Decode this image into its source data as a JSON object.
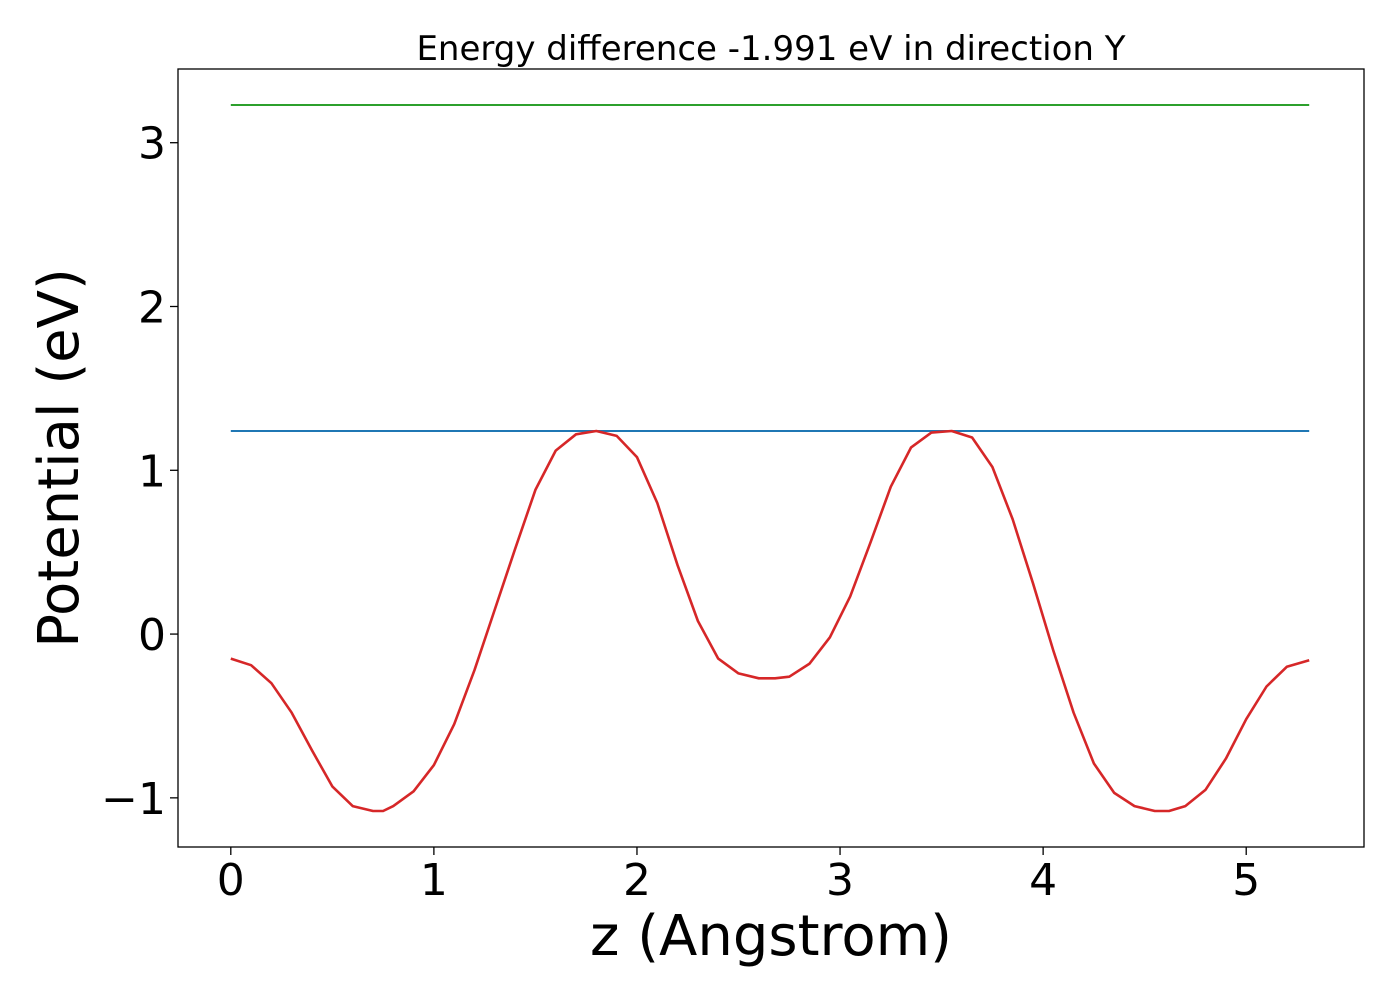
{
  "chart_data": {
    "type": "line",
    "title": "Energy difference -1.991 eV in direction Y",
    "xlabel": "z (Angstrom)",
    "ylabel": "Potential (eV)",
    "xlim": [
      -0.26,
      5.58
    ],
    "ylim": [
      -1.3,
      3.45
    ],
    "xticks": [
      0,
      1,
      2,
      3,
      4,
      5
    ],
    "yticks": [
      -1,
      0,
      1,
      2,
      3
    ],
    "xtick_labels": [
      "0",
      "1",
      "2",
      "3",
      "4",
      "5"
    ],
    "ytick_labels": [
      "−1",
      "0",
      "1",
      "2",
      "3"
    ],
    "grid": false,
    "legend": "none",
    "series": [
      {
        "color": "#2ca02c",
        "x": [
          0,
          5.31
        ],
        "y": [
          3.23,
          3.23
        ]
      },
      {
        "color": "#1f77b4",
        "x": [
          0,
          5.31
        ],
        "y": [
          1.24,
          1.24
        ]
      },
      {
        "color": "#d62728",
        "x": [
          0.0,
          0.1,
          0.2,
          0.3,
          0.4,
          0.5,
          0.6,
          0.7,
          0.75,
          0.8,
          0.9,
          1.0,
          1.1,
          1.2,
          1.3,
          1.4,
          1.5,
          1.6,
          1.7,
          1.8,
          1.9,
          2.0,
          2.1,
          2.2,
          2.3,
          2.4,
          2.5,
          2.6,
          2.68,
          2.75,
          2.85,
          2.95,
          3.05,
          3.15,
          3.25,
          3.35,
          3.45,
          3.55,
          3.65,
          3.75,
          3.85,
          3.95,
          4.05,
          4.15,
          4.25,
          4.35,
          4.45,
          4.55,
          4.62,
          4.7,
          4.8,
          4.9,
          5.0,
          5.1,
          5.2,
          5.31
        ],
        "y": [
          -0.15,
          -0.19,
          -0.3,
          -0.48,
          -0.71,
          -0.93,
          -1.05,
          -1.08,
          -1.08,
          -1.05,
          -0.96,
          -0.8,
          -0.55,
          -0.22,
          0.15,
          0.52,
          0.88,
          1.12,
          1.22,
          1.24,
          1.21,
          1.08,
          0.8,
          0.42,
          0.08,
          -0.15,
          -0.24,
          -0.27,
          -0.27,
          -0.26,
          -0.18,
          -0.02,
          0.23,
          0.56,
          0.9,
          1.14,
          1.23,
          1.24,
          1.2,
          1.02,
          0.7,
          0.31,
          -0.1,
          -0.48,
          -0.79,
          -0.97,
          -1.05,
          -1.08,
          -1.08,
          -1.05,
          -0.95,
          -0.76,
          -0.52,
          -0.32,
          -0.2,
          -0.16
        ]
      }
    ]
  }
}
